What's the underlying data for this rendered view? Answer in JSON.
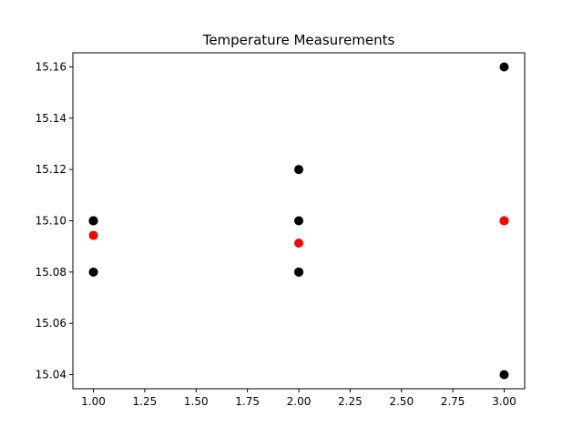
{
  "chart_data": {
    "type": "scatter",
    "title": "Temperature Measurements",
    "xlabel": "",
    "ylabel": "",
    "xlim": [
      0.9,
      3.1
    ],
    "ylim": [
      15.0345,
      15.1655
    ],
    "x_ticks": [
      1.0,
      1.25,
      1.5,
      1.75,
      2.0,
      2.25,
      2.5,
      2.75,
      3.0
    ],
    "x_tick_labels": [
      "1.00",
      "1.25",
      "1.50",
      "1.75",
      "2.00",
      "2.25",
      "2.50",
      "2.75",
      "3.00"
    ],
    "y_ticks": [
      15.04,
      15.06,
      15.08,
      15.1,
      15.12,
      15.14,
      15.16
    ],
    "y_tick_labels": [
      "15.04",
      "15.06",
      "15.08",
      "15.10",
      "15.12",
      "15.14",
      "15.16"
    ],
    "grid": false,
    "legend": "none",
    "series": [
      {
        "color": "#000000",
        "points": [
          {
            "x": 1,
            "y": 15.1
          },
          {
            "x": 1,
            "y": 15.1
          },
          {
            "x": 1,
            "y": 15.1
          },
          {
            "x": 1,
            "y": 15.08
          },
          {
            "x": 2,
            "y": 15.12
          },
          {
            "x": 2,
            "y": 15.1
          },
          {
            "x": 2,
            "y": 15.08
          },
          {
            "x": 2,
            "y": 15.08
          },
          {
            "x": 3,
            "y": 15.16
          },
          {
            "x": 3,
            "y": 15.1
          },
          {
            "x": 3,
            "y": 15.04
          }
        ]
      },
      {
        "color": "#ff0000",
        "points": [
          {
            "x": 1,
            "y": 15.0943
          },
          {
            "x": 2,
            "y": 15.0913
          },
          {
            "x": 3,
            "y": 15.1
          }
        ]
      }
    ]
  }
}
